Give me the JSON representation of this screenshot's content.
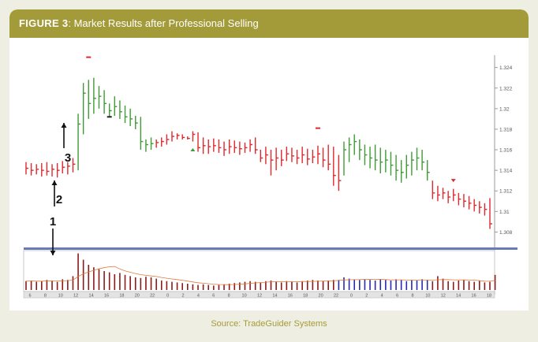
{
  "figure": {
    "label": "FIGURE 3",
    "title": "Market Results after Professional Selling",
    "source": "Source: TradeGuider Systems"
  },
  "colors": {
    "header": "#a39b3a",
    "down_bar": "#e0282c",
    "up_bar": "#3f9b35",
    "volume_down": "#8b1a1a",
    "volume_up": "#2a2ab0",
    "divider": "#6a79b8",
    "avg_line": "#e07a3a"
  },
  "chart_data": {
    "type": "bar",
    "subtype": "ohlc-price-with-volume",
    "title": "Market Results after Professional Selling",
    "y_axis": {
      "ticks": [
        1.308,
        1.31,
        1.312,
        1.314,
        1.316,
        1.318,
        1.32,
        1.322,
        1.324
      ],
      "tick_labels": [
        "1.308",
        "1.31",
        "1.312",
        "1.314",
        "1.316",
        "1.318",
        "1.32",
        "1.322",
        "1.324"
      ],
      "range": [
        1.3065,
        1.3252
      ]
    },
    "x_axis": {
      "tick_labels": [
        {
          "label": "6",
          "bar": 3
        },
        {
          "label": "8",
          "bar": 11
        },
        {
          "label": "10",
          "bar": 19
        },
        {
          "label": "12",
          "bar": 27
        },
        {
          "label": "14",
          "bar": 35
        },
        {
          "label": "16",
          "bar": 43
        },
        {
          "label": "18",
          "bar": 51
        },
        {
          "label": "20",
          "bar": 59
        },
        {
          "label": "22",
          "bar": 67
        },
        {
          "label": "0",
          "bar": 75
        },
        {
          "label": "2",
          "bar": 83
        },
        {
          "label": "4",
          "bar": 91
        },
        {
          "label": "6",
          "bar": 99
        },
        {
          "label": "8",
          "bar": 107
        },
        {
          "label": "10",
          "bar": 115
        },
        {
          "label": "12",
          "bar": 123
        },
        {
          "label": "14",
          "bar": 131
        },
        {
          "label": "16",
          "bar": 139
        },
        {
          "label": "18",
          "bar": 147
        },
        {
          "label": "20",
          "bar": 155
        },
        {
          "label": "22",
          "bar": 163
        },
        {
          "label": "0",
          "bar": 171
        },
        {
          "label": "2",
          "bar": 179
        },
        {
          "label": "4",
          "bar": 187
        },
        {
          "label": "6",
          "bar": 195
        },
        {
          "label": "8",
          "bar": 203
        },
        {
          "label": "10",
          "bar": 211
        },
        {
          "label": "12",
          "bar": 219
        },
        {
          "label": "14",
          "bar": 227
        },
        {
          "label": "16",
          "bar": 235
        },
        {
          "label": "18",
          "bar": 243
        }
      ]
    },
    "annotations": [
      {
        "label": "1",
        "bar": 10,
        "type": "arrow-down-to-volume"
      },
      {
        "label": "2",
        "bar": 11,
        "type": "arrow-up"
      },
      {
        "label": "3",
        "bar": 13,
        "type": "arrow-up"
      }
    ],
    "price_bars": [
      {
        "h": 1.3148,
        "l": 1.3136,
        "c": 1.3142,
        "dir": "down"
      },
      {
        "h": 1.3147,
        "l": 1.3135,
        "c": 1.314,
        "dir": "down"
      },
      {
        "h": 1.3146,
        "l": 1.3136,
        "c": 1.3141,
        "dir": "down"
      },
      {
        "h": 1.3147,
        "l": 1.3134,
        "c": 1.314,
        "dir": "down"
      },
      {
        "h": 1.3148,
        "l": 1.3135,
        "c": 1.3139,
        "dir": "down"
      },
      {
        "h": 1.3146,
        "l": 1.3134,
        "c": 1.3141,
        "dir": "down"
      },
      {
        "h": 1.3147,
        "l": 1.3133,
        "c": 1.314,
        "dir": "down"
      },
      {
        "h": 1.3149,
        "l": 1.3137,
        "c": 1.3143,
        "dir": "down"
      },
      {
        "h": 1.3148,
        "l": 1.3136,
        "c": 1.3144,
        "dir": "down"
      },
      {
        "h": 1.3152,
        "l": 1.3138,
        "c": 1.3146,
        "dir": "down"
      },
      {
        "h": 1.3195,
        "l": 1.314,
        "c": 1.3185,
        "dir": "up"
      },
      {
        "h": 1.3225,
        "l": 1.3175,
        "c": 1.3215,
        "dir": "up"
      },
      {
        "h": 1.3228,
        "l": 1.319,
        "c": 1.3205,
        "dir": "up"
      },
      {
        "h": 1.323,
        "l": 1.3195,
        "c": 1.321,
        "dir": "up"
      },
      {
        "h": 1.3222,
        "l": 1.32,
        "c": 1.3212,
        "dir": "up"
      },
      {
        "h": 1.3218,
        "l": 1.3195,
        "c": 1.3205,
        "dir": "up"
      },
      {
        "h": 1.3205,
        "l": 1.3192,
        "c": 1.3198,
        "dir": "up"
      },
      {
        "h": 1.3212,
        "l": 1.3193,
        "c": 1.3202,
        "dir": "up"
      },
      {
        "h": 1.3208,
        "l": 1.319,
        "c": 1.3197,
        "dir": "up"
      },
      {
        "h": 1.3203,
        "l": 1.3186,
        "c": 1.3192,
        "dir": "up"
      },
      {
        "h": 1.32,
        "l": 1.3183,
        "c": 1.319,
        "dir": "up"
      },
      {
        "h": 1.3193,
        "l": 1.318,
        "c": 1.3186,
        "dir": "up"
      },
      {
        "h": 1.3192,
        "l": 1.316,
        "c": 1.3168,
        "dir": "up"
      },
      {
        "h": 1.317,
        "l": 1.3158,
        "c": 1.3165,
        "dir": "up"
      },
      {
        "h": 1.3172,
        "l": 1.316,
        "c": 1.3166,
        "dir": "up"
      },
      {
        "h": 1.317,
        "l": 1.3162,
        "c": 1.3167,
        "dir": "down"
      },
      {
        "h": 1.3172,
        "l": 1.3163,
        "c": 1.3168,
        "dir": "down"
      },
      {
        "h": 1.3175,
        "l": 1.3165,
        "c": 1.317,
        "dir": "down"
      },
      {
        "h": 1.3178,
        "l": 1.3168,
        "c": 1.3173,
        "dir": "down"
      },
      {
        "h": 1.3176,
        "l": 1.317,
        "c": 1.3174,
        "dir": "down"
      },
      {
        "h": 1.3175,
        "l": 1.317,
        "c": 1.3172,
        "dir": "down"
      },
      {
        "h": 1.3173,
        "l": 1.317,
        "c": 1.3171,
        "dir": "down"
      },
      {
        "h": 1.3178,
        "l": 1.3168,
        "c": 1.3175,
        "dir": "down"
      },
      {
        "h": 1.3177,
        "l": 1.3158,
        "c": 1.3162,
        "dir": "down"
      },
      {
        "h": 1.3172,
        "l": 1.3156,
        "c": 1.3164,
        "dir": "down"
      },
      {
        "h": 1.317,
        "l": 1.3156,
        "c": 1.3163,
        "dir": "down"
      },
      {
        "h": 1.3171,
        "l": 1.3158,
        "c": 1.3164,
        "dir": "down"
      },
      {
        "h": 1.317,
        "l": 1.3157,
        "c": 1.3162,
        "dir": "down"
      },
      {
        "h": 1.3168,
        "l": 1.3154,
        "c": 1.316,
        "dir": "down"
      },
      {
        "h": 1.317,
        "l": 1.3156,
        "c": 1.3163,
        "dir": "down"
      },
      {
        "h": 1.3169,
        "l": 1.3157,
        "c": 1.3162,
        "dir": "down"
      },
      {
        "h": 1.3168,
        "l": 1.3155,
        "c": 1.3161,
        "dir": "down"
      },
      {
        "h": 1.3167,
        "l": 1.3157,
        "c": 1.3162,
        "dir": "down"
      },
      {
        "h": 1.317,
        "l": 1.3158,
        "c": 1.3165,
        "dir": "down"
      },
      {
        "h": 1.3172,
        "l": 1.3156,
        "c": 1.316,
        "dir": "down"
      },
      {
        "h": 1.316,
        "l": 1.3148,
        "c": 1.3152,
        "dir": "down"
      },
      {
        "h": 1.3163,
        "l": 1.3146,
        "c": 1.3155,
        "dir": "down"
      },
      {
        "h": 1.316,
        "l": 1.3135,
        "c": 1.315,
        "dir": "down"
      },
      {
        "h": 1.3162,
        "l": 1.314,
        "c": 1.3152,
        "dir": "down"
      },
      {
        "h": 1.316,
        "l": 1.3144,
        "c": 1.315,
        "dir": "down"
      },
      {
        "h": 1.3163,
        "l": 1.3149,
        "c": 1.3156,
        "dir": "down"
      },
      {
        "h": 1.3162,
        "l": 1.3148,
        "c": 1.3154,
        "dir": "down"
      },
      {
        "h": 1.316,
        "l": 1.3146,
        "c": 1.3152,
        "dir": "down"
      },
      {
        "h": 1.3163,
        "l": 1.3147,
        "c": 1.3155,
        "dir": "down"
      },
      {
        "h": 1.3161,
        "l": 1.3145,
        "c": 1.3151,
        "dir": "down"
      },
      {
        "h": 1.316,
        "l": 1.3147,
        "c": 1.3153,
        "dir": "down"
      },
      {
        "h": 1.3164,
        "l": 1.3146,
        "c": 1.3156,
        "dir": "down"
      },
      {
        "h": 1.3162,
        "l": 1.3143,
        "c": 1.315,
        "dir": "down"
      },
      {
        "h": 1.3165,
        "l": 1.314,
        "c": 1.3146,
        "dir": "down"
      },
      {
        "h": 1.3163,
        "l": 1.3125,
        "c": 1.3135,
        "dir": "down"
      },
      {
        "h": 1.3155,
        "l": 1.312,
        "c": 1.313,
        "dir": "down"
      },
      {
        "h": 1.3168,
        "l": 1.3135,
        "c": 1.316,
        "dir": "up"
      },
      {
        "h": 1.3172,
        "l": 1.3148,
        "c": 1.3165,
        "dir": "up"
      },
      {
        "h": 1.3175,
        "l": 1.3155,
        "c": 1.3168,
        "dir": "up"
      },
      {
        "h": 1.317,
        "l": 1.315,
        "c": 1.316,
        "dir": "up"
      },
      {
        "h": 1.3165,
        "l": 1.3145,
        "c": 1.3155,
        "dir": "up"
      },
      {
        "h": 1.3163,
        "l": 1.3142,
        "c": 1.3152,
        "dir": "up"
      },
      {
        "h": 1.3165,
        "l": 1.314,
        "c": 1.315,
        "dir": "up"
      },
      {
        "h": 1.3162,
        "l": 1.3137,
        "c": 1.3148,
        "dir": "up"
      },
      {
        "h": 1.316,
        "l": 1.3138,
        "c": 1.315,
        "dir": "up"
      },
      {
        "h": 1.3158,
        "l": 1.3135,
        "c": 1.3145,
        "dir": "up"
      },
      {
        "h": 1.3155,
        "l": 1.313,
        "c": 1.314,
        "dir": "up"
      },
      {
        "h": 1.315,
        "l": 1.3128,
        "c": 1.3138,
        "dir": "up"
      },
      {
        "h": 1.3155,
        "l": 1.3132,
        "c": 1.3145,
        "dir": "up"
      },
      {
        "h": 1.3158,
        "l": 1.3135,
        "c": 1.315,
        "dir": "up"
      },
      {
        "h": 1.3162,
        "l": 1.314,
        "c": 1.3152,
        "dir": "up"
      },
      {
        "h": 1.316,
        "l": 1.314,
        "c": 1.3148,
        "dir": "up"
      },
      {
        "h": 1.315,
        "l": 1.313,
        "c": 1.3138,
        "dir": "up"
      },
      {
        "h": 1.313,
        "l": 1.3112,
        "c": 1.3118,
        "dir": "down"
      },
      {
        "h": 1.3125,
        "l": 1.311,
        "c": 1.3116,
        "dir": "down"
      },
      {
        "h": 1.3123,
        "l": 1.3112,
        "c": 1.3118,
        "dir": "down"
      },
      {
        "h": 1.312,
        "l": 1.3108,
        "c": 1.3114,
        "dir": "down"
      },
      {
        "h": 1.3122,
        "l": 1.311,
        "c": 1.3116,
        "dir": "down"
      },
      {
        "h": 1.3118,
        "l": 1.3106,
        "c": 1.3112,
        "dir": "down"
      },
      {
        "h": 1.3117,
        "l": 1.3104,
        "c": 1.311,
        "dir": "down"
      },
      {
        "h": 1.3115,
        "l": 1.3102,
        "c": 1.3108,
        "dir": "down"
      },
      {
        "h": 1.3112,
        "l": 1.31,
        "c": 1.3106,
        "dir": "down"
      },
      {
        "h": 1.311,
        "l": 1.3098,
        "c": 1.3104,
        "dir": "down"
      },
      {
        "h": 1.3108,
        "l": 1.3096,
        "c": 1.3102,
        "dir": "down"
      },
      {
        "h": 1.3113,
        "l": 1.3083,
        "c": 1.3088,
        "dir": "down"
      }
    ],
    "volume": [
      14,
      15,
      13,
      14,
      16,
      15,
      13,
      17,
      16,
      22,
      58,
      48,
      40,
      36,
      33,
      30,
      28,
      25,
      27,
      24,
      22,
      20,
      19,
      21,
      20,
      18,
      15,
      14,
      13,
      12,
      11,
      10,
      9,
      8,
      9,
      8,
      7,
      8,
      9,
      10,
      11,
      12,
      13,
      14,
      13,
      12,
      14,
      15,
      13,
      12,
      14,
      13,
      12,
      14,
      15,
      16,
      15,
      14,
      15,
      16,
      16,
      20,
      18,
      17,
      16,
      17,
      16,
      15,
      17,
      16,
      15,
      17,
      16,
      14,
      16,
      15,
      17,
      16,
      14,
      22,
      18,
      14,
      13,
      15,
      16,
      14,
      13,
      15,
      12,
      13,
      24
    ]
  }
}
